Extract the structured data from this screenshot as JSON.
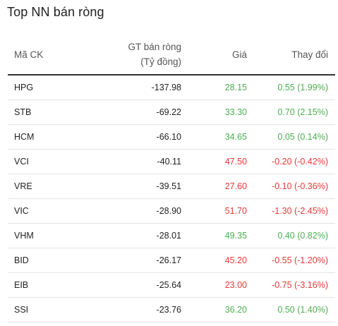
{
  "widget": {
    "title": "Top NN bán ròng"
  },
  "table": {
    "headers": {
      "code": "Mã CK",
      "value_line1": "GT bán ròng",
      "value_line2": "(Tỷ đồng)",
      "price": "Giá",
      "change": "Thay đổi"
    },
    "rows": [
      {
        "code": "HPG",
        "value": "-137.98",
        "price": "28.15",
        "change": "0.55 (1.99%)",
        "direction": "up"
      },
      {
        "code": "STB",
        "value": "-69.22",
        "price": "33.30",
        "change": "0.70 (2.15%)",
        "direction": "up"
      },
      {
        "code": "HCM",
        "value": "-66.10",
        "price": "34.65",
        "change": "0.05 (0.14%)",
        "direction": "up"
      },
      {
        "code": "VCI",
        "value": "-40.11",
        "price": "47.50",
        "change": "-0.20 (-0.42%)",
        "direction": "down"
      },
      {
        "code": "VRE",
        "value": "-39.51",
        "price": "27.60",
        "change": "-0.10 (-0.36%)",
        "direction": "down"
      },
      {
        "code": "VIC",
        "value": "-28.90",
        "price": "51.70",
        "change": "-1.30 (-2.45%)",
        "direction": "down"
      },
      {
        "code": "VHM",
        "value": "-28.01",
        "price": "49.35",
        "change": "0.40 (0.82%)",
        "direction": "up"
      },
      {
        "code": "BID",
        "value": "-26.17",
        "price": "45.20",
        "change": "-0.55 (-1.20%)",
        "direction": "down"
      },
      {
        "code": "EIB",
        "value": "-25.64",
        "price": "23.00",
        "change": "-0.75 (-3.16%)",
        "direction": "down"
      },
      {
        "code": "SSI",
        "value": "-23.76",
        "price": "36.20",
        "change": "0.50 (1.40%)",
        "direction": "up"
      }
    ]
  },
  "colors": {
    "up": "#4caf50",
    "down": "#e53935",
    "header_line": "#333333",
    "row_divider": "#e3e3e3"
  }
}
